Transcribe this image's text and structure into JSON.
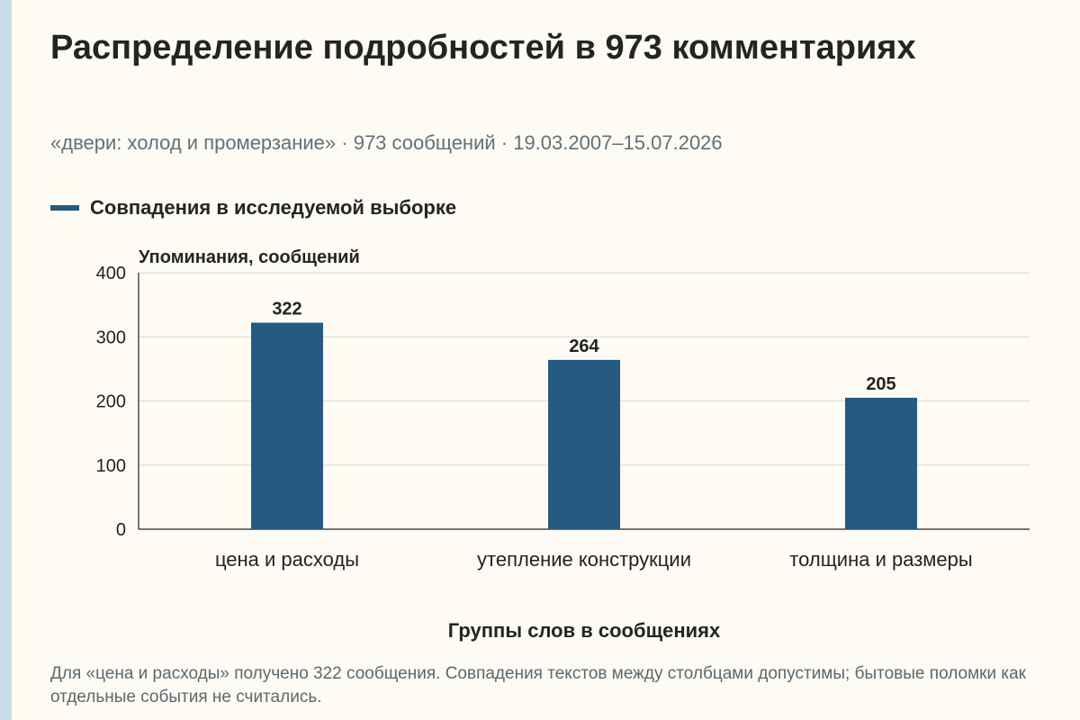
{
  "title": "Распределение подробностей в 973 комментариях",
  "subtitle": "«двери: холод и промерзание» · 973 сообщений · 19.03.2007–15.07.2026",
  "footnote": "Для «цена и расходы» получено 322 сообщения. Совпадения текстов между столбцами допустимы; бытовые поломки как отдельные события не считались.",
  "colors": {
    "bar": "#265a80",
    "grid": "#d9d9d3",
    "axis": "#222222",
    "background": "#fdfbf3",
    "accent_strip": "#c9dcea"
  },
  "chart_data": {
    "type": "bar",
    "categories": [
      "цена и расходы",
      "утепление конструкции",
      "толщина и размеры"
    ],
    "series": [
      {
        "name": "Совпадения в исследуемой выборке",
        "values": [
          322,
          264,
          205
        ]
      }
    ],
    "data_labels": [
      "322",
      "264",
      "205"
    ],
    "xlabel": "Группы слов в сообщениях",
    "ylabel": "Упоминания, сообщений",
    "ylim": [
      0,
      400
    ],
    "yticks": [
      0,
      100,
      200,
      300,
      400
    ],
    "ytick_labels": [
      "0",
      "100",
      "200",
      "300",
      "400"
    ],
    "grid": true,
    "legend_position": "top-left"
  }
}
